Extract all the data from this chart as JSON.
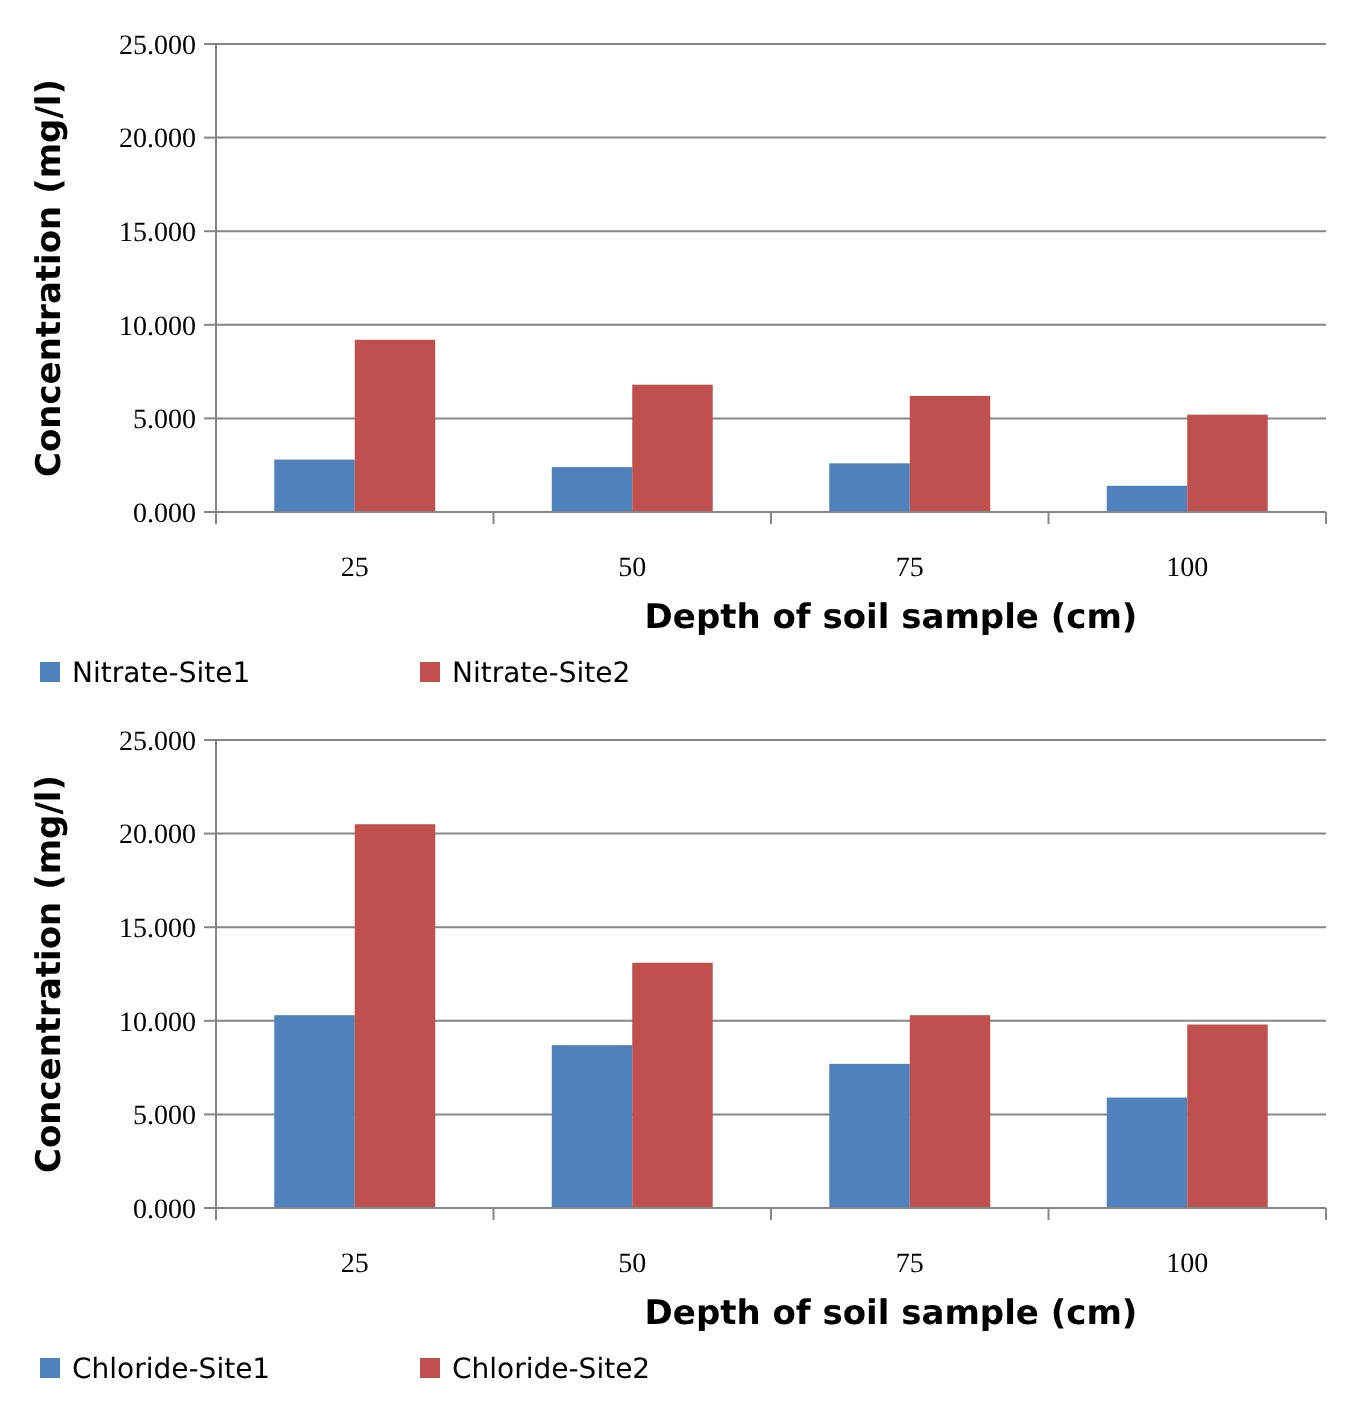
{
  "chart_data": [
    {
      "type": "bar",
      "xlabel": "Depth of soil sample (cm)",
      "ylabel": "Concentration (mg/l)",
      "categories": [
        "25",
        "50",
        "75",
        "100"
      ],
      "series": [
        {
          "name": "Nitrate-Site1",
          "color": "#4f81bd",
          "values": [
            2.8,
            2.4,
            2.6,
            1.4
          ]
        },
        {
          "name": "Nitrate-Site2",
          "color": "#c0504d",
          "values": [
            9.2,
            6.8,
            6.2,
            5.2
          ]
        }
      ],
      "ylim": [
        0,
        25
      ],
      "yticks": [
        {
          "value": 0,
          "label": "0.000"
        },
        {
          "value": 5,
          "label": "5.000"
        },
        {
          "value": 10,
          "label": "10.000"
        },
        {
          "value": 15,
          "label": "15.000"
        },
        {
          "value": 20,
          "label": "20.000"
        },
        {
          "value": 25,
          "label": "25.000"
        }
      ],
      "grid": "y",
      "legend": "bottom"
    },
    {
      "type": "bar",
      "xlabel": "Depth of soil sample (cm)",
      "ylabel": "Concentration (mg/l)",
      "categories": [
        "25",
        "50",
        "75",
        "100"
      ],
      "series": [
        {
          "name": "Chloride-Site1",
          "color": "#4f81bd",
          "values": [
            10.3,
            8.7,
            7.7,
            5.9
          ]
        },
        {
          "name": "Chloride-Site2",
          "color": "#c0504d",
          "values": [
            20.5,
            13.1,
            10.3,
            9.8
          ]
        }
      ],
      "ylim": [
        0,
        25
      ],
      "yticks": [
        {
          "value": 0,
          "label": "0.000"
        },
        {
          "value": 5,
          "label": "5.000"
        },
        {
          "value": 10,
          "label": "10.000"
        },
        {
          "value": 15,
          "label": "15.000"
        },
        {
          "value": 20,
          "label": "20.000"
        },
        {
          "value": 25,
          "label": "25.000"
        }
      ],
      "grid": "y",
      "legend": "bottom"
    }
  ]
}
